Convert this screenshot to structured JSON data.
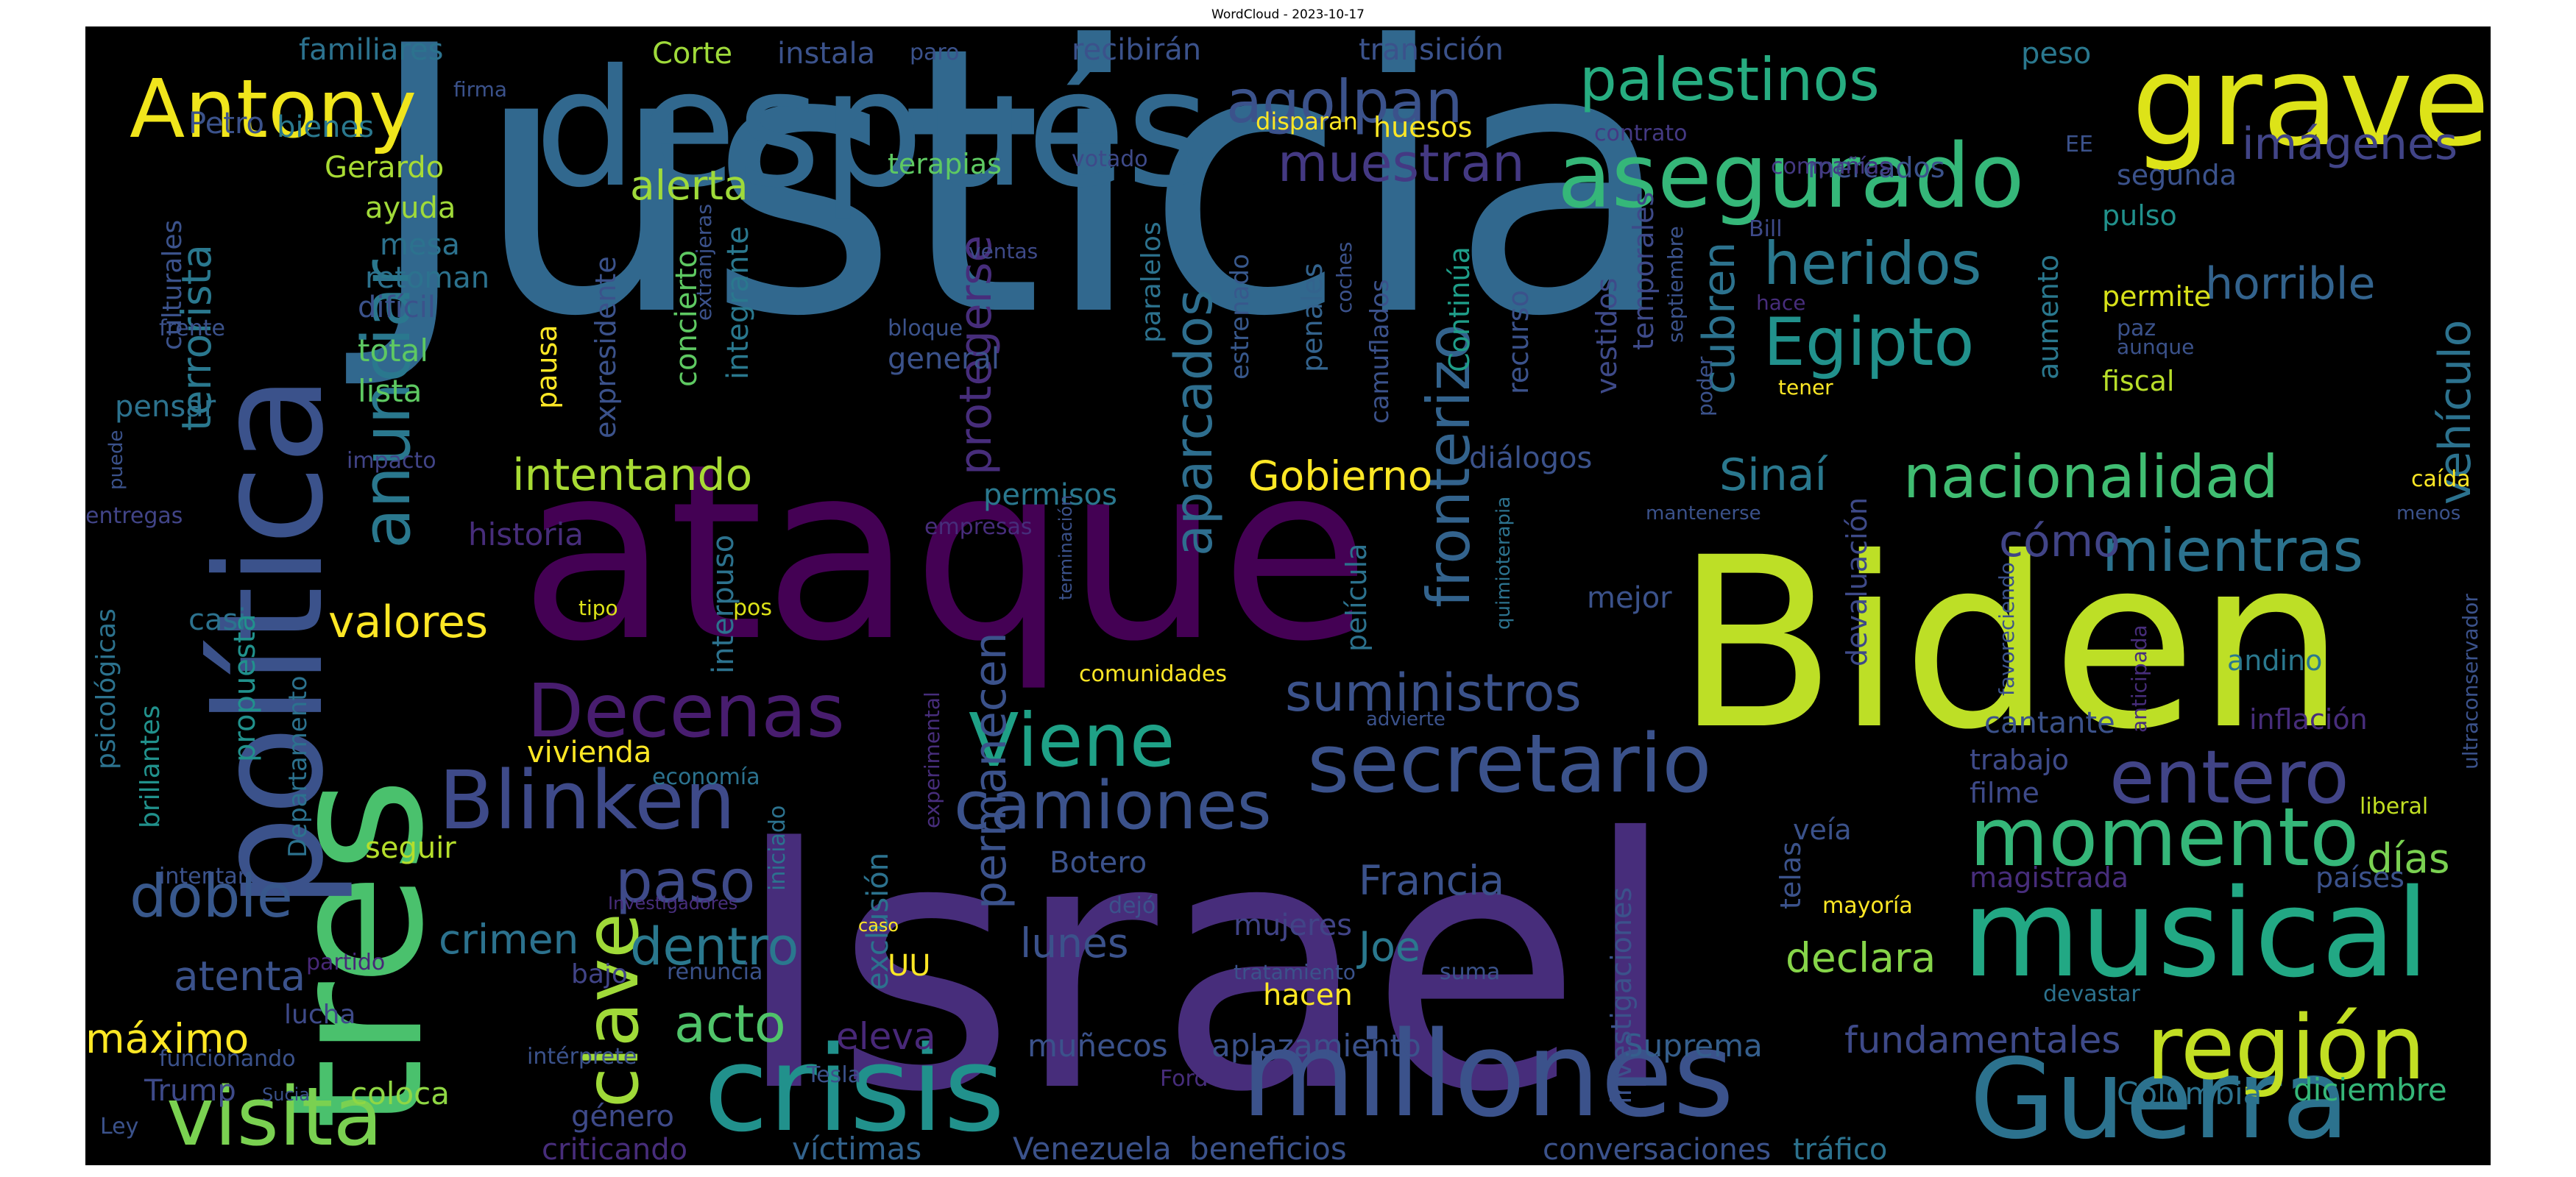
{
  "title": "WordCloud - 2023-10-17",
  "palette": {
    "background": "#000000",
    "purple": "#440154",
    "indigo": "#472d7b",
    "slate": "#3b528b",
    "blue": "#2c728e",
    "teal": "#21918c",
    "green": "#27ad81",
    "lightgreen": "#5ec962",
    "lime": "#aadc32",
    "yellow": "#fde725"
  },
  "words": [
    {
      "text": "Justicia",
      "color": "#31688e"
    },
    {
      "text": "Israel",
      "color": "#472d7b"
    },
    {
      "text": "ataque",
      "color": "#440154"
    },
    {
      "text": "Biden",
      "color": "#bddf26"
    },
    {
      "text": "tres",
      "color": "#4ac16d"
    },
    {
      "text": "después",
      "color": "#31688e"
    },
    {
      "text": "política",
      "color": "#3b528b"
    },
    {
      "text": "crisis",
      "color": "#21918c"
    },
    {
      "text": "millones",
      "color": "#3b528b"
    },
    {
      "text": "Guerra",
      "color": "#2c728e"
    },
    {
      "text": "grave",
      "color": "#dde318"
    },
    {
      "text": "musical",
      "color": "#22a884"
    },
    {
      "text": "asegurado",
      "color": "#35b779"
    },
    {
      "text": "Antony",
      "color": "#f0e51c"
    },
    {
      "text": "región",
      "color": "#c2df23"
    },
    {
      "text": "Blinken",
      "color": "#3e4a89"
    },
    {
      "text": "secretario",
      "color": "#3b528b"
    },
    {
      "text": "visita",
      "color": "#7ad151"
    },
    {
      "text": "clave",
      "color": "#a0da39"
    },
    {
      "text": "Viene",
      "color": "#1fa187"
    },
    {
      "text": "momento",
      "color": "#35b779"
    },
    {
      "text": "entero",
      "color": "#414487"
    },
    {
      "text": "Decenas",
      "color": "#481d6f"
    },
    {
      "text": "camiones",
      "color": "#3b528b"
    },
    {
      "text": "anunciar",
      "color": "#2a788e"
    },
    {
      "text": "palestinos",
      "color": "#27ad81"
    },
    {
      "text": "agolpan",
      "color": "#3b528b"
    },
    {
      "text": "fronterizo",
      "color": "#33638d"
    },
    {
      "text": "Egipto",
      "color": "#21918c"
    },
    {
      "text": "nacionalidad",
      "color": "#40bd72"
    },
    {
      "text": "mientras",
      "color": "#2c728e"
    },
    {
      "text": "muestran",
      "color": "#443983"
    },
    {
      "text": "suministros",
      "color": "#3b528b"
    },
    {
      "text": "heridos",
      "color": "#2a788e"
    },
    {
      "text": "cubren",
      "color": "#2c728e"
    },
    {
      "text": "imágenes",
      "color": "#414487"
    },
    {
      "text": "vehículo",
      "color": "#2c728e"
    },
    {
      "text": "aparcados",
      "color": "#2e6e8e"
    },
    {
      "text": "protegerse",
      "color": "#472d7b"
    },
    {
      "text": "permanecen",
      "color": "#3b528b"
    },
    {
      "text": "doble",
      "color": "#38588c"
    },
    {
      "text": "paso",
      "color": "#3e4a89"
    },
    {
      "text": "dentro",
      "color": "#2a788e"
    },
    {
      "text": "acto",
      "color": "#50c46a"
    },
    {
      "text": "horrible",
      "color": "#33638d"
    },
    {
      "text": "intentando",
      "color": "#a8db34"
    },
    {
      "text": "valores",
      "color": "#fde725"
    },
    {
      "text": "Sinaí",
      "color": "#2a788e"
    },
    {
      "text": "cómo",
      "color": "#414487"
    },
    {
      "text": "días",
      "color": "#7ad151"
    },
    {
      "text": "terrorista",
      "color": "#2a788e"
    },
    {
      "text": "Francia",
      "color": "#3b528b"
    },
    {
      "text": "Joe",
      "color": "#2a788e"
    },
    {
      "text": "declara",
      "color": "#86d549"
    },
    {
      "text": "lunes",
      "color": "#3b528b"
    },
    {
      "text": "crimen",
      "color": "#2c728e"
    },
    {
      "text": "atenta",
      "color": "#3b528b"
    },
    {
      "text": "eleva",
      "color": "#482878"
    },
    {
      "text": "fundamentales",
      "color": "#3e4a89"
    },
    {
      "text": "Gobierno",
      "color": "#fde725"
    },
    {
      "text": "alerta",
      "color": "#9fda3a"
    },
    {
      "text": "máximo",
      "color": "#fde725"
    },
    {
      "text": "muñecos",
      "color": "#3b528b"
    },
    {
      "text": "aplazamiento",
      "color": "#3b528b"
    },
    {
      "text": "Suprema",
      "color": "#355f8d"
    },
    {
      "text": "Colombia",
      "color": "#2c728e"
    },
    {
      "text": "diciembre",
      "color": "#35b779"
    },
    {
      "text": "coloca",
      "color": "#8fd744"
    },
    {
      "text": "Trump",
      "color": "#3e4a89"
    },
    {
      "text": "género",
      "color": "#3e4a89"
    },
    {
      "text": "criticando",
      "color": "#472d7b"
    },
    {
      "text": "víctimas",
      "color": "#33638d"
    },
    {
      "text": "Venezuela",
      "color": "#3b528b"
    },
    {
      "text": "beneficios",
      "color": "#3b528b"
    },
    {
      "text": "conversaciones",
      "color": "#3b528b"
    },
    {
      "text": "tráfico",
      "color": "#2c728e"
    },
    {
      "text": "Botero",
      "color": "#3b528b"
    },
    {
      "text": "mujeres",
      "color": "#414487"
    },
    {
      "text": "hacen",
      "color": "#fde725"
    },
    {
      "text": "UU",
      "color": "#fde725"
    },
    {
      "text": "terapias",
      "color": "#5ec962"
    },
    {
      "text": "permisos",
      "color": "#2a788e"
    },
    {
      "text": "diálogos",
      "color": "#3b528b"
    },
    {
      "text": "película",
      "color": "#2c728e"
    },
    {
      "text": "mejor",
      "color": "#3b528b"
    },
    {
      "text": "devaluación",
      "color": "#3e4a89"
    },
    {
      "text": "cantante",
      "color": "#3b528b"
    },
    {
      "text": "inflación",
      "color": "#472d7b"
    },
    {
      "text": "trabajo",
      "color": "#3e4a89"
    },
    {
      "text": "filme",
      "color": "#3e4a89"
    },
    {
      "text": "magistrada",
      "color": "#472d7b"
    },
    {
      "text": "países",
      "color": "#3b528b"
    },
    {
      "text": "veía",
      "color": "#3b528b"
    },
    {
      "text": "telas",
      "color": "#3b528b"
    },
    {
      "text": "andino",
      "color": "#2a788e"
    },
    {
      "text": "investigaciones",
      "color": "#3b528b"
    },
    {
      "text": "mayoría",
      "color": "#fde725"
    },
    {
      "text": "liberal",
      "color": "#c2df23"
    },
    {
      "text": "devastar",
      "color": "#2c728e"
    },
    {
      "text": "permite",
      "color": "#d8e219"
    },
    {
      "text": "fiscal",
      "color": "#b8de29"
    },
    {
      "text": "pulso",
      "color": "#21918c"
    },
    {
      "text": "segunda",
      "color": "#3b528b"
    },
    {
      "text": "mercados",
      "color": "#3b528b"
    },
    {
      "text": "compañías",
      "color": "#443983"
    },
    {
      "text": "aumento",
      "color": "#2a788e"
    },
    {
      "text": "temporales",
      "color": "#3e4a89"
    },
    {
      "text": "vestidos",
      "color": "#3e4a89"
    },
    {
      "text": "recurso",
      "color": "#3b528b"
    },
    {
      "text": "Continúa",
      "color": "#1f9e89"
    },
    {
      "text": "camuflados",
      "color": "#3b528b"
    },
    {
      "text": "penales",
      "color": "#33638d"
    },
    {
      "text": "estrenado",
      "color": "#38588c"
    },
    {
      "text": "paralelos",
      "color": "#2c728e"
    },
    {
      "text": "general",
      "color": "#3b528b"
    },
    {
      "text": "bloque",
      "color": "#3b528b"
    },
    {
      "text": "huesos",
      "color": "#fde725"
    },
    {
      "text": "disparan",
      "color": "#fde725"
    },
    {
      "text": "votado",
      "color": "#3e4a89"
    },
    {
      "text": "contrato",
      "color": "#443983"
    },
    {
      "text": "peso",
      "color": "#2a788e"
    },
    {
      "text": "transición",
      "color": "#3b528b"
    },
    {
      "text": "recibirán",
      "color": "#3b528b"
    },
    {
      "text": "paro",
      "color": "#3b528b"
    },
    {
      "text": "instala",
      "color": "#3b528b"
    },
    {
      "text": "Corte",
      "color": "#9fda3a"
    },
    {
      "text": "familiares",
      "color": "#2c728e"
    },
    {
      "text": "firma",
      "color": "#3b528b"
    },
    {
      "text": "Petro",
      "color": "#3b528b"
    },
    {
      "text": "bienes",
      "color": "#2a788e"
    },
    {
      "text": "Gerardo",
      "color": "#a8db34"
    },
    {
      "text": "ayuda",
      "color": "#a0da39"
    },
    {
      "text": "mesa",
      "color": "#2c728e"
    },
    {
      "text": "retoman",
      "color": "#2c728e"
    },
    {
      "text": "difícil",
      "color": "#3b528b"
    },
    {
      "text": "total",
      "color": "#5ec962"
    },
    {
      "text": "lista",
      "color": "#5ec962"
    },
    {
      "text": "culturales",
      "color": "#3b528b"
    },
    {
      "text": "frente",
      "color": "#3b528b"
    },
    {
      "text": "pensar",
      "color": "#2c728e"
    },
    {
      "text": "casi",
      "color": "#2c728e"
    },
    {
      "text": "puede",
      "color": "#3b528b"
    },
    {
      "text": "entregas",
      "color": "#414487"
    },
    {
      "text": "impacto",
      "color": "#414487"
    },
    {
      "text": "psicológicas",
      "color": "#2c728e"
    },
    {
      "text": "brillantes",
      "color": "#21918c"
    },
    {
      "text": "propuesta",
      "color": "#21918c"
    },
    {
      "text": "Departamento",
      "color": "#2c728e"
    },
    {
      "text": "vivienda",
      "color": "#fde725"
    },
    {
      "text": "seguir",
      "color": "#b5de2b"
    },
    {
      "text": "intentar",
      "color": "#3b528b"
    },
    {
      "text": "lucha",
      "color": "#3e4a89"
    },
    {
      "text": "partido",
      "color": "#482878"
    },
    {
      "text": "bajo",
      "color": "#414487"
    },
    {
      "text": "renuncia",
      "color": "#3b528b"
    },
    {
      "text": "funcionando",
      "color": "#3b528b"
    },
    {
      "text": "Ley",
      "color": "#3b528b"
    },
    {
      "text": "Sucia",
      "color": "#3b528b"
    },
    {
      "text": "Tesla",
      "color": "#3b528b"
    },
    {
      "text": "Ford",
      "color": "#472d7b"
    },
    {
      "text": "intérprete",
      "color": "#3b528b"
    },
    {
      "text": "historia",
      "color": "#472d7b"
    },
    {
      "text": "tipo",
      "color": "#dde318"
    },
    {
      "text": "pos",
      "color": "#dde318"
    },
    {
      "text": "economía",
      "color": "#2c728e"
    },
    {
      "text": "exclusión",
      "color": "#2c728e"
    },
    {
      "text": "iniciado",
      "color": "#2c728e"
    },
    {
      "text": "Investigadores",
      "color": "#472d7b"
    },
    {
      "text": "experimental",
      "color": "#472d7b"
    },
    {
      "text": "caso",
      "color": "#fde725"
    },
    {
      "text": "comunidades",
      "color": "#fde725"
    },
    {
      "text": "empresas",
      "color": "#472d7b"
    },
    {
      "text": "interpuso",
      "color": "#2c728e"
    },
    {
      "text": "integrante",
      "color": "#2a788e"
    },
    {
      "text": "extranjeras",
      "color": "#3b528b"
    },
    {
      "text": "concierto",
      "color": "#5ec962"
    },
    {
      "text": "expresidente",
      "color": "#3b528b"
    },
    {
      "text": "pausa",
      "color": "#fde725"
    },
    {
      "text": "ventas",
      "color": "#3e4a89"
    },
    {
      "text": "coches",
      "color": "#3b528b"
    },
    {
      "text": "septiembre",
      "color": "#3b528b"
    },
    {
      "text": "hace",
      "color": "#472d7b"
    },
    {
      "text": "Bill",
      "color": "#3e4a89"
    },
    {
      "text": "tener",
      "color": "#fde725"
    },
    {
      "text": "poder",
      "color": "#3b528b"
    },
    {
      "text": "aunque",
      "color": "#3b528b"
    },
    {
      "text": "paz",
      "color": "#3b528b"
    },
    {
      "text": "EE",
      "color": "#3b528b"
    },
    {
      "text": "caída",
      "color": "#fde725"
    },
    {
      "text": "menos",
      "color": "#3b528b"
    },
    {
      "text": "mantenerse",
      "color": "#3b528b"
    },
    {
      "text": "favoreciendo",
      "color": "#3b528b"
    },
    {
      "text": "anticipada",
      "color": "#472d7b"
    },
    {
      "text": "ultraconservador",
      "color": "#3b528b"
    },
    {
      "text": "terminación",
      "color": "#3b528b"
    },
    {
      "text": "quimioterapia",
      "color": "#2c728e"
    },
    {
      "text": "advierte",
      "color": "#3b528b"
    },
    {
      "text": "tratamiento",
      "color": "#3b528b"
    },
    {
      "text": "suma",
      "color": "#3b528b"
    },
    {
      "text": "dejó",
      "color": "#3b528b"
    }
  ]
}
